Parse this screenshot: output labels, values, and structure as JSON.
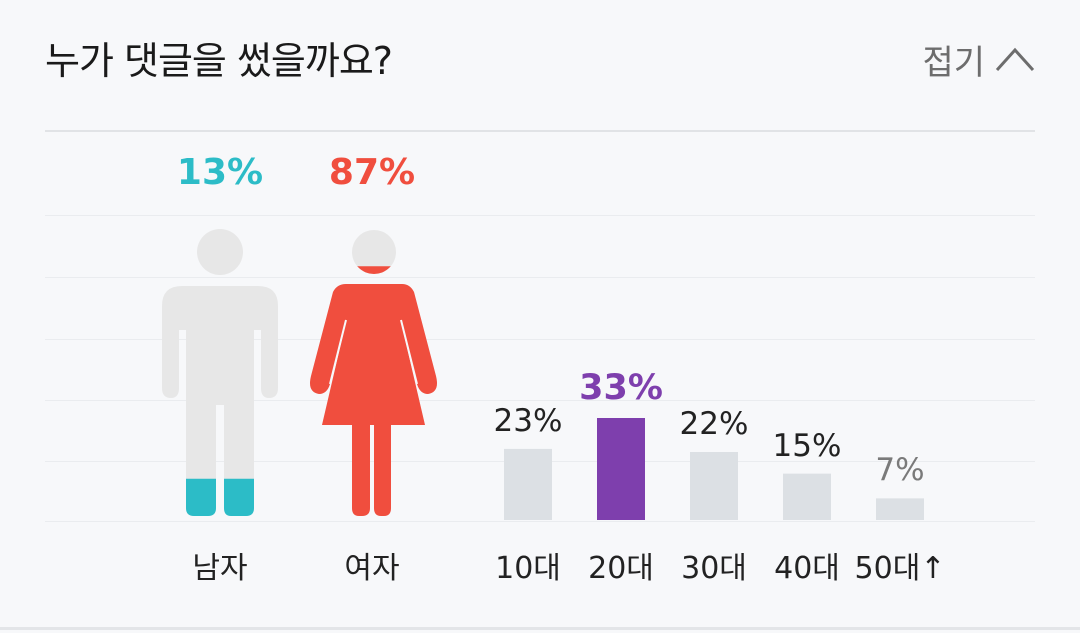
{
  "header": {
    "title": "누가 댓글을 썼을까요?",
    "collapse_label": "접기",
    "collapse_icon": "chevron-up-icon"
  },
  "chart_data": [
    {
      "type": "pictogram",
      "categories": [
        "남자",
        "여자"
      ],
      "values": [
        13,
        87
      ],
      "value_labels": [
        "13%",
        "87%"
      ],
      "colors": [
        "#2cbcc7",
        "#f04e3e"
      ],
      "icons": [
        "male-figure-icon",
        "female-figure-icon"
      ]
    },
    {
      "type": "bar",
      "categories": [
        "10대",
        "20대",
        "30대",
        "40대",
        "50대↑"
      ],
      "values": [
        23,
        33,
        22,
        15,
        7
      ],
      "value_labels": [
        "23%",
        "33%",
        "22%",
        "15%",
        "7%"
      ],
      "highlight_index": 1,
      "highlight_color": "#7e3fad",
      "bar_color": "#dce0e4",
      "ylim": [
        0,
        33
      ]
    }
  ]
}
